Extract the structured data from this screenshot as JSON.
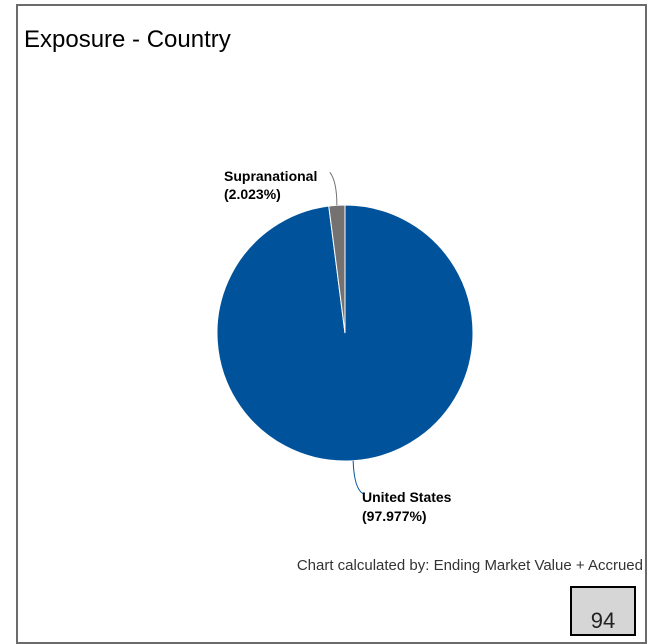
{
  "title": "Exposure - Country",
  "footnote": "Chart calculated by: Ending Market Value + Accrued",
  "page_number": "94",
  "colors": {
    "united_states": "#00539b",
    "supranational": "#767171"
  },
  "chart_data": {
    "type": "pie",
    "title": "Exposure - Country",
    "slices": [
      {
        "name": "United States",
        "value": 97.977,
        "label": "United States",
        "label_pct": "(97.977%)",
        "color": "#00539b"
      },
      {
        "name": "Supranational",
        "value": 2.023,
        "label": "Supranational",
        "label_pct": "(2.023%)",
        "color": "#767171"
      }
    ],
    "start": "top",
    "direction": "clockwise",
    "legend": "none"
  }
}
